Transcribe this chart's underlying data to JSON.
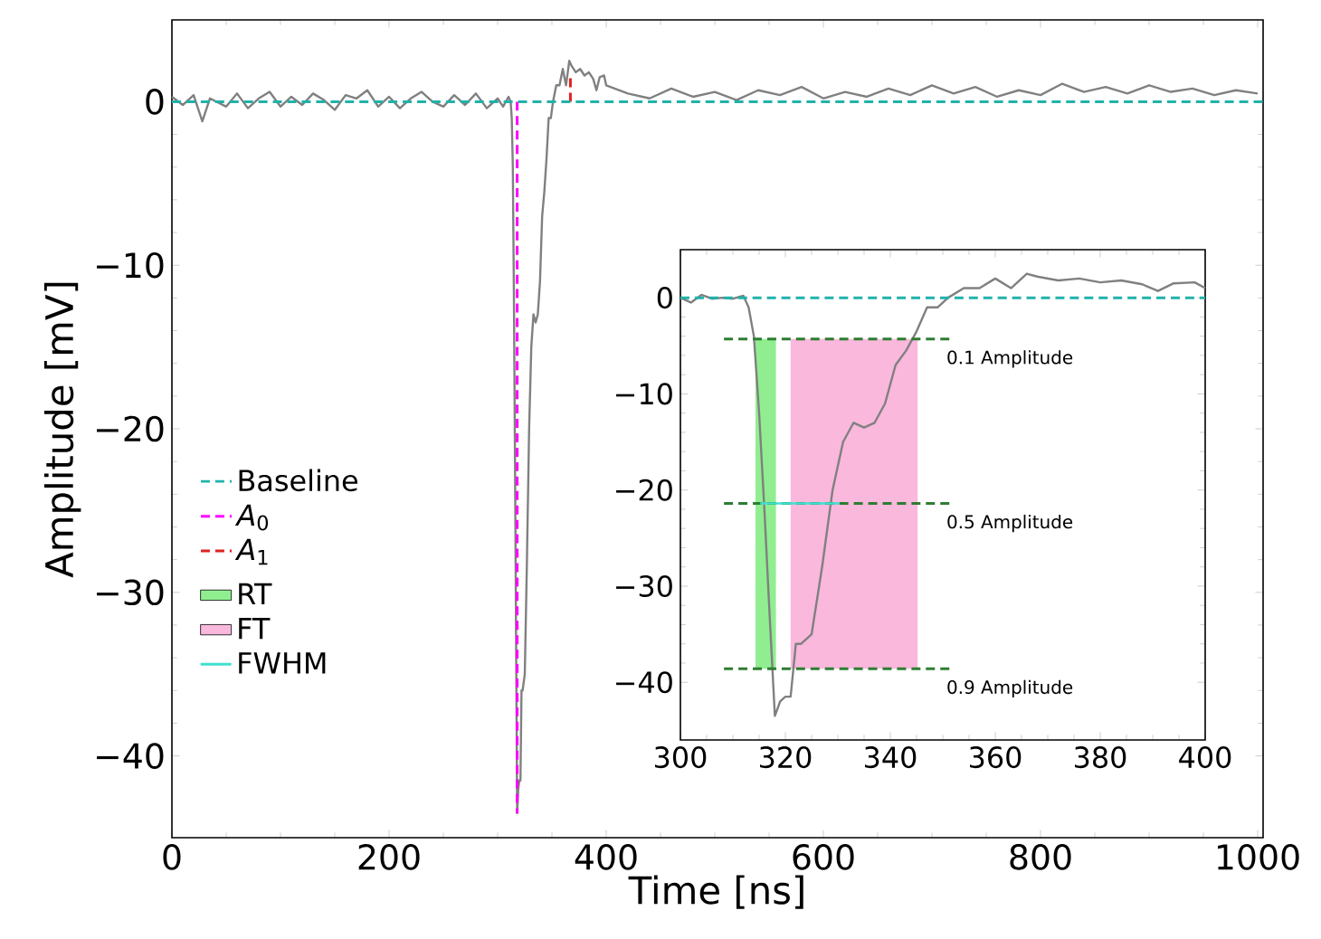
{
  "chart_data": [
    {
      "type": "line",
      "xlabel": "Time [ns]",
      "ylabel": "Amplitude [mV]",
      "xlim": [
        0,
        1005
      ],
      "ylim": [
        -45,
        5
      ],
      "xticks": [
        0,
        200,
        400,
        600,
        800,
        1000
      ],
      "yticks": [
        {
          "value": -40,
          "label": "−40"
        },
        {
          "value": -30,
          "label": "−30"
        },
        {
          "value": -20,
          "label": "−20"
        },
        {
          "value": -10,
          "label": "−10"
        },
        0
      ],
      "legend": "bottom left",
      "ref_lines": [
        {
          "axis": "y",
          "value": 0,
          "label": "Baseline",
          "color": "#20b2aa",
          "line_style": "dashed"
        }
      ],
      "series": [
        {
          "color": "#808080",
          "line_style": "solid",
          "x": [
            0,
            10,
            20,
            28,
            35,
            50,
            60,
            70,
            80,
            90,
            100,
            110,
            120,
            130,
            140,
            150,
            160,
            170,
            180,
            190,
            200,
            210,
            220,
            230,
            240,
            250,
            260,
            270,
            280,
            290,
            300,
            305,
            310,
            312,
            313,
            314,
            315,
            316,
            317,
            318,
            319,
            320,
            321,
            322,
            323,
            325,
            327,
            329,
            331,
            333,
            335,
            337,
            339,
            341,
            343,
            345,
            347,
            349,
            351,
            354,
            357,
            360,
            363,
            366,
            368,
            372,
            376,
            380,
            384,
            388,
            391,
            394,
            398,
            400,
            420,
            440,
            460,
            480,
            500,
            520,
            540,
            560,
            580,
            600,
            620,
            640,
            660,
            680,
            700,
            720,
            740,
            760,
            780,
            800,
            820,
            840,
            860,
            880,
            900,
            920,
            940,
            960,
            980,
            1000
          ],
          "values": [
            0.3,
            -0.2,
            0.4,
            -1.2,
            0.2,
            -0.3,
            0.5,
            -0.4,
            0.2,
            0.6,
            -0.3,
            0.3,
            -0.2,
            0.5,
            0.1,
            -0.5,
            0.4,
            0.2,
            0.7,
            -0.3,
            0.3,
            -0.4,
            0.2,
            0.6,
            0,
            -0.3,
            0.4,
            -0.2,
            0.5,
            -0.4,
            0.2,
            -0.3,
            0.3,
            0,
            -1,
            -4,
            -12,
            -22,
            -33,
            -43.5,
            -42,
            -41.5,
            -41.5,
            -36,
            -36,
            -35,
            -28,
            -20,
            -15,
            -13,
            -13.5,
            -13,
            -11,
            -7,
            -5.5,
            -3.5,
            -1,
            -1,
            0,
            1,
            1,
            2,
            1,
            2.5,
            2.2,
            1.8,
            2,
            1.6,
            1.8,
            1.4,
            0.7,
            1.5,
            1.6,
            1,
            0.5,
            0.2,
            0.8,
            0.3,
            0.6,
            0.1,
            0.7,
            0.4,
            0.9,
            0.2,
            0.6,
            0.3,
            0.8,
            0.4,
            1,
            0.5,
            0.9,
            0.3,
            0.7,
            0.4,
            1.1,
            0.6,
            0.9,
            0.5,
            1,
            0.6,
            0.8,
            0.4,
            0.7,
            0.5
          ]
        },
        {
          "name": "*A*$_{0}$",
          "color": "#ff00ff",
          "line_style": "dashed",
          "x": [
            318,
            318
          ],
          "values": [
            0,
            -43.5
          ]
        },
        {
          "name": "*A*$_{1}$",
          "color": "#dd2222",
          "line_style": "dashed",
          "x": [
            367,
            367
          ],
          "values": [
            0,
            1.5
          ]
        }
      ]
    },
    {
      "type": "line",
      "xlim": [
        300,
        400
      ],
      "ylim": [
        -46,
        5
      ],
      "legend": "left",
      "xticks": [
        300,
        320,
        340,
        360,
        380,
        400
      ],
      "yticks": [
        {
          "value": -40,
          "label": "−40"
        },
        {
          "value": -30,
          "label": "−30"
        },
        {
          "value": -20,
          "label": "−20"
        },
        {
          "value": -10,
          "label": "−10"
        },
        0
      ],
      "ref_lines": [
        {
          "axis": "y",
          "value": 0,
          "color": "#20b2aa",
          "line_style": "dashed"
        }
      ],
      "annotations": [
        "0.1 Amplitude",
        "0.5 Amplitude",
        "0.9 Amplitude"
      ],
      "series": [
        {
          "name": "RT",
          "type": "bar",
          "color": "#90ee90",
          "x": [
            316.25
          ],
          "values": [
            34.3
          ],
          "base": [
            -38.6
          ]
        },
        {
          "name": "FT",
          "type": "bar",
          "color": "#f9b8dc",
          "x": [
            333.1
          ],
          "values": [
            34.3
          ],
          "base": [
            -38.6
          ]
        },
        {
          "color": "#808080",
          "line_style": "solid",
          "x": [
            300,
            302,
            304,
            306,
            308,
            310,
            312,
            313,
            314,
            315,
            316,
            317,
            318,
            319,
            320,
            321,
            322,
            323,
            325,
            327,
            329,
            331,
            333,
            335,
            337,
            339,
            341,
            343,
            345,
            347,
            349,
            351,
            354,
            357,
            360,
            363,
            366,
            368,
            372,
            376,
            380,
            384,
            388,
            391,
            394,
            398,
            400
          ],
          "values": [
            0,
            -0.5,
            0.3,
            -0.1,
            0,
            -0.1,
            0.2,
            -1,
            -4,
            -12,
            -22,
            -33,
            -43.5,
            -42,
            -41.5,
            -41.5,
            -36,
            -36,
            -35,
            -28,
            -20,
            -15,
            -13,
            -13.5,
            -13,
            -11,
            -7,
            -5.5,
            -3.5,
            -1,
            -1,
            0,
            1,
            1,
            2,
            1,
            2.5,
            2.2,
            1.8,
            2,
            1.6,
            1.8,
            1.4,
            0.7,
            1.5,
            1.6,
            1
          ]
        },
        {
          "color": "#2e7d32",
          "line_style": "dashed",
          "x": [
            308.3,
            352
          ],
          "values": [
            -4.3,
            -4.3
          ]
        },
        {
          "color": "#2e7d32",
          "line_style": "dashed",
          "x": [
            308.3,
            352
          ],
          "values": [
            -21.4,
            -21.4
          ]
        },
        {
          "color": "#2e7d32",
          "line_style": "dashed",
          "x": [
            308.3,
            352
          ],
          "values": [
            -38.6,
            -38.6
          ]
        },
        {
          "name": "FWHM",
          "color": "#40e0d0",
          "line_style": "solid",
          "x": [
            315.2,
            330.3
          ],
          "values": [
            -21.4,
            -21.4
          ]
        }
      ]
    }
  ]
}
